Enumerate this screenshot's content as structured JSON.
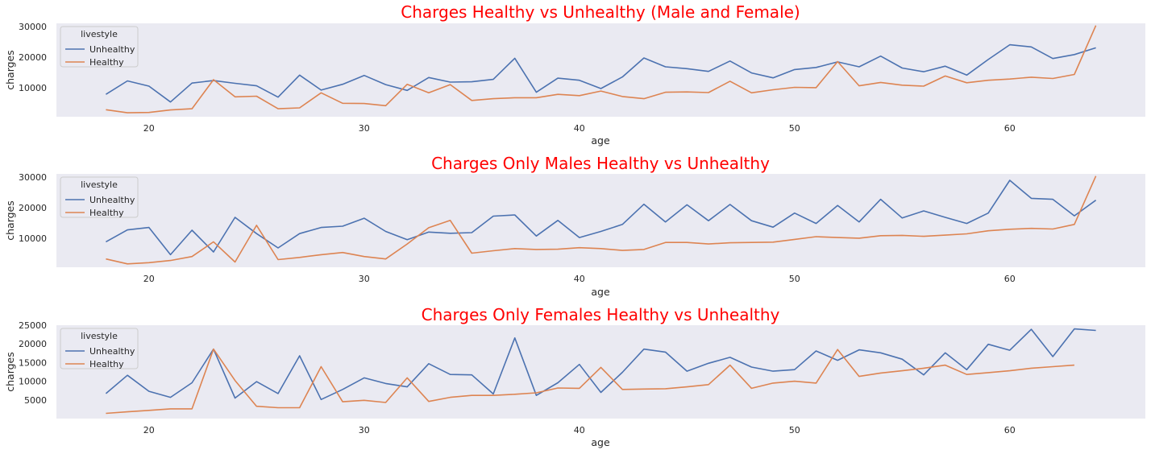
{
  "colors": {
    "title": "#ff0000",
    "axes_bg": "#eaeaf2",
    "unhealthy": "#4c72b0",
    "healthy": "#dd8452"
  },
  "chart_data": [
    {
      "type": "line",
      "title": "Charges Healthy vs Unhealthy (Male and Female)",
      "xlabel": "age",
      "ylabel": "charges",
      "xlim": [
        15.7,
        66.3
      ],
      "ylim": [
        500,
        31000
      ],
      "xticks": [
        20,
        30,
        40,
        50,
        60
      ],
      "yticks": [
        10000,
        20000,
        30000
      ],
      "ytick_labels": [
        "10000",
        "20000",
        "30000"
      ],
      "grid": false,
      "legend": {
        "title": "livestyle",
        "position": "top-left"
      },
      "series": [
        {
          "name": "Unhealthy",
          "x": [
            18,
            19,
            20,
            21,
            22,
            23,
            24,
            25,
            26,
            27,
            28,
            29,
            30,
            31,
            32,
            33,
            34,
            35,
            36,
            37,
            38,
            39,
            40,
            41,
            42,
            43,
            44,
            45,
            46,
            47,
            48,
            49,
            50,
            51,
            52,
            53,
            54,
            55,
            56,
            57,
            58,
            59,
            60,
            61,
            62,
            63,
            64
          ],
          "y": [
            7800,
            12200,
            10500,
            5300,
            11500,
            12300,
            11400,
            10600,
            6900,
            14100,
            9200,
            11100,
            14000,
            11000,
            9100,
            13300,
            11800,
            11900,
            12700,
            19600,
            8500,
            13100,
            12400,
            9700,
            13500,
            19700,
            16800,
            16200,
            15300,
            18700,
            14800,
            13200,
            15900,
            16600,
            18400,
            16800,
            20300,
            16400,
            15200,
            17000,
            14100,
            19200,
            24000,
            23300,
            19500,
            20800,
            23000
          ]
        },
        {
          "name": "Healthy",
          "x": [
            18,
            19,
            20,
            21,
            22,
            23,
            24,
            25,
            26,
            27,
            28,
            29,
            30,
            31,
            32,
            33,
            34,
            35,
            36,
            37,
            38,
            39,
            40,
            41,
            42,
            43,
            44,
            45,
            46,
            47,
            48,
            49,
            50,
            51,
            52,
            53,
            54,
            55,
            56,
            57,
            58,
            59,
            60,
            61,
            62,
            63,
            64
          ],
          "y": [
            2800,
            1800,
            1900,
            2700,
            3100,
            12600,
            7000,
            7200,
            3100,
            3400,
            8300,
            4900,
            4800,
            4100,
            11100,
            8300,
            11000,
            5800,
            6400,
            6700,
            6700,
            7800,
            7400,
            8900,
            7100,
            6400,
            8500,
            8600,
            8400,
            12100,
            8300,
            9300,
            10100,
            10000,
            18500,
            10600,
            11700,
            10800,
            10500,
            13800,
            11600,
            12400,
            12800,
            13400,
            13000,
            14300,
            30300
          ]
        }
      ]
    },
    {
      "type": "line",
      "title": "Charges Only Males Healthy vs Unhealthy",
      "xlabel": "age",
      "ylabel": "charges",
      "xlim": [
        15.7,
        66.3
      ],
      "ylim": [
        500,
        31000
      ],
      "xticks": [
        20,
        30,
        40,
        50,
        60
      ],
      "yticks": [
        10000,
        20000,
        30000
      ],
      "ytick_labels": [
        "10000",
        "20000",
        "30000"
      ],
      "grid": false,
      "legend": {
        "title": "livestyle",
        "position": "top-left"
      },
      "series": [
        {
          "name": "Unhealthy",
          "x": [
            18,
            19,
            20,
            21,
            22,
            23,
            24,
            25,
            26,
            27,
            28,
            29,
            30,
            31,
            32,
            33,
            34,
            35,
            36,
            37,
            38,
            39,
            40,
            41,
            42,
            43,
            44,
            45,
            46,
            47,
            48,
            49,
            50,
            51,
            52,
            53,
            54,
            55,
            56,
            57,
            58,
            59,
            60,
            61,
            62,
            63,
            64
          ],
          "y": [
            8800,
            12700,
            13500,
            4600,
            12600,
            5500,
            16800,
            11500,
            6800,
            11500,
            13500,
            13900,
            16500,
            12200,
            9500,
            12000,
            11600,
            11800,
            17200,
            17600,
            10700,
            15800,
            10200,
            12200,
            14500,
            21100,
            15300,
            20900,
            15700,
            21000,
            15700,
            13600,
            18200,
            14800,
            20700,
            15300,
            22700,
            16600,
            18900,
            16800,
            14800,
            18200,
            28900,
            23000,
            22700,
            17300,
            22400
          ]
        },
        {
          "name": "Healthy",
          "x": [
            18,
            19,
            20,
            21,
            22,
            23,
            24,
            25,
            26,
            27,
            28,
            29,
            30,
            31,
            32,
            33,
            34,
            35,
            36,
            37,
            38,
            39,
            40,
            41,
            42,
            43,
            44,
            45,
            46,
            47,
            48,
            49,
            50,
            51,
            52,
            53,
            54,
            55,
            56,
            57,
            58,
            59,
            60,
            61,
            62,
            63,
            64
          ],
          "y": [
            3200,
            1600,
            2000,
            2700,
            4000,
            8800,
            2200,
            14200,
            3000,
            3700,
            4600,
            5300,
            4000,
            3200,
            8100,
            13400,
            15800,
            5100,
            5900,
            6600,
            6300,
            6400,
            6900,
            6600,
            6000,
            6300,
            8600,
            8600,
            8100,
            8500,
            8600,
            8700,
            9600,
            10500,
            10200,
            10000,
            10800,
            10900,
            10600,
            11000,
            11400,
            12400,
            12900,
            13200,
            13000,
            14500,
            30300
          ]
        }
      ]
    },
    {
      "type": "line",
      "title": "Charges Only Females Healthy vs Unhealthy",
      "xlabel": "age",
      "ylabel": "charges",
      "xlim": [
        15.7,
        66.3
      ],
      "ylim": [
        0,
        25000
      ],
      "xticks": [
        20,
        30,
        40,
        50,
        60
      ],
      "yticks": [
        5000,
        10000,
        15000,
        20000,
        25000
      ],
      "ytick_labels": [
        "5000",
        "10000",
        "15000",
        "20000",
        "25000"
      ],
      "grid": false,
      "legend": {
        "title": "livestyle",
        "position": "top-left"
      },
      "series": [
        {
          "name": "Unhealthy",
          "x": [
            18,
            19,
            20,
            21,
            22,
            23,
            24,
            25,
            26,
            27,
            28,
            29,
            30,
            31,
            32,
            33,
            34,
            35,
            36,
            37,
            38,
            39,
            40,
            41,
            42,
            43,
            44,
            45,
            46,
            47,
            48,
            49,
            50,
            51,
            52,
            53,
            54,
            55,
            56,
            57,
            58,
            59,
            60,
            61,
            62,
            63,
            64
          ],
          "y": [
            6700,
            11600,
            7300,
            5700,
            9600,
            18600,
            5500,
            9900,
            6700,
            16800,
            5100,
            7800,
            10900,
            9400,
            8500,
            14700,
            11800,
            11700,
            6600,
            21600,
            6200,
            9600,
            14500,
            7000,
            12400,
            18600,
            17800,
            12700,
            14800,
            16400,
            13800,
            12700,
            13100,
            18100,
            15600,
            18400,
            17600,
            15900,
            11700,
            17600,
            13100,
            19900,
            18300,
            23900,
            16600,
            24000,
            23600
          ]
        },
        {
          "name": "Healthy",
          "x": [
            18,
            19,
            20,
            21,
            22,
            23,
            24,
            25,
            26,
            27,
            28,
            29,
            30,
            31,
            32,
            33,
            34,
            35,
            36,
            37,
            38,
            39,
            40,
            41,
            42,
            43,
            44,
            45,
            46,
            47,
            48,
            49,
            50,
            51,
            52,
            53,
            54,
            55,
            56,
            57,
            58,
            59,
            60,
            61,
            62,
            63
          ],
          "y": [
            1400,
            1800,
            2200,
            2600,
            2600,
            18600,
            10200,
            3300,
            2900,
            2900,
            13900,
            4500,
            4900,
            4300,
            10900,
            4600,
            5700,
            6200,
            6200,
            6500,
            6900,
            8200,
            8100,
            13700,
            7800,
            7900,
            8000,
            8500,
            9100,
            14300,
            8100,
            9500,
            10000,
            9500,
            18500,
            11300,
            12200,
            12800,
            13500,
            14300,
            11800,
            12300,
            12800,
            13500,
            13900,
            14300
          ]
        }
      ]
    }
  ]
}
